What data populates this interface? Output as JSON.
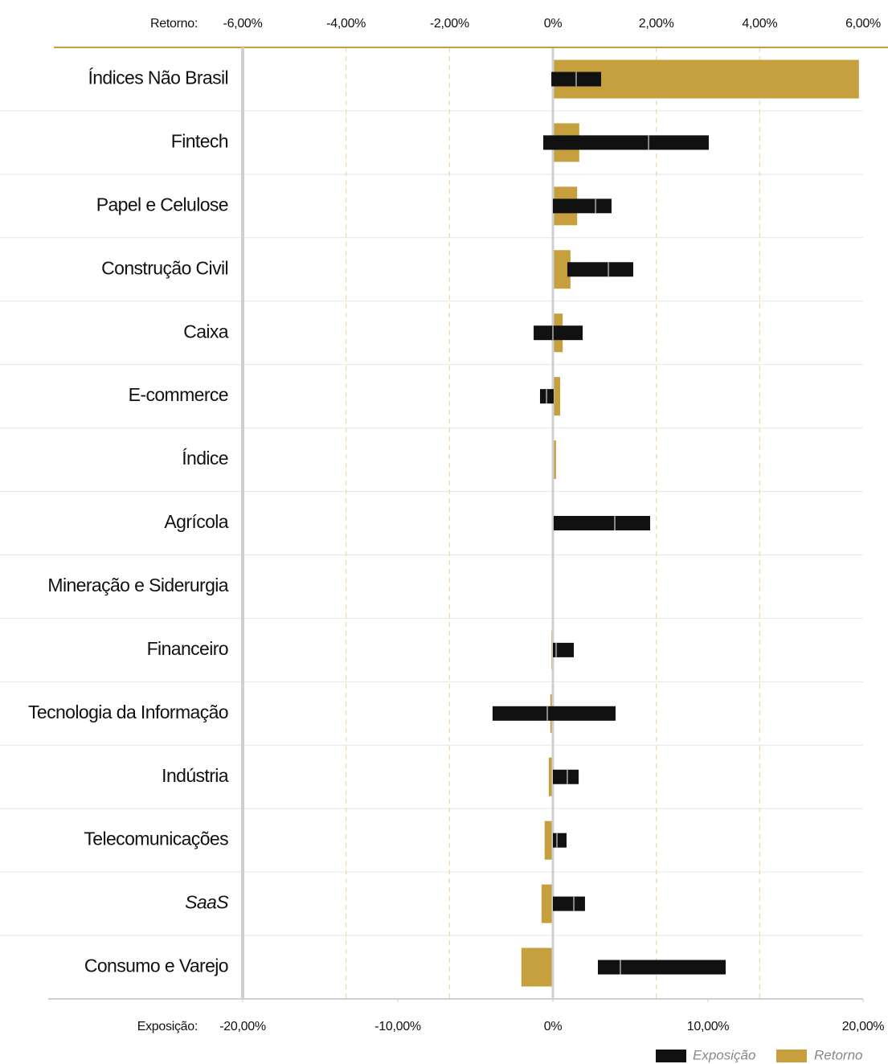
{
  "chart_data": {
    "type": "bar",
    "orientation": "horizontal",
    "categories": [
      "Índices Não Brasil",
      "Fintech",
      "Papel e Celulose",
      "Construção Civil",
      "Caixa",
      "E-commerce",
      "Índice",
      "Agrícola",
      "Mineração e Siderurgia",
      "Financeiro",
      "Tecnologia da Informação",
      "Indústria",
      "Telecomunicações",
      "SaaS",
      "Consumo e Varejo"
    ],
    "xlabel": "Retorno:",
    "x2label": "Exposição:",
    "xlim": [
      -6,
      6
    ],
    "xticks": [
      {
        "value": -6,
        "label": "-6,00%"
      },
      {
        "value": -4,
        "label": "-4,00%"
      },
      {
        "value": -2,
        "label": "-2,00%"
      },
      {
        "value": 0,
        "label": "0%"
      },
      {
        "value": 2,
        "label": "2,00%"
      },
      {
        "value": 4,
        "label": "4,00%"
      },
      {
        "value": 6,
        "label": "6,00%"
      }
    ],
    "x2lim": [
      -20,
      20
    ],
    "x2ticks": [
      {
        "value": -20,
        "label": "-20,00%"
      },
      {
        "value": -10,
        "label": "-10,00%"
      },
      {
        "value": 0,
        "label": "0%"
      },
      {
        "value": 10,
        "label": "10,00%"
      },
      {
        "value": 20,
        "label": "20,00%"
      }
    ],
    "grid": true,
    "legend": "bottom-right",
    "series": [
      {
        "name": "Exposição",
        "color": "#111111",
        "axis": "x2",
        "values": [
          1.5,
          6.17,
          2.75,
          3.58,
          0,
          -0.41,
          null,
          3.99,
          null,
          0.21,
          -0.36,
          0.93,
          0.26,
          1.35,
          4.35
        ],
        "low": [
          -0.1,
          -0.62,
          0,
          0.93,
          -1.24,
          -0.83,
          null,
          0.05,
          null,
          0,
          -3.89,
          0,
          0,
          0,
          2.9
        ],
        "high": [
          3.11,
          10.05,
          3.78,
          5.18,
          1.92,
          0.05,
          null,
          6.27,
          null,
          1.35,
          4.04,
          1.66,
          0.88,
          2.07,
          11.14
        ]
      },
      {
        "name": "Retorno",
        "color": "#c6a03e",
        "values": [
          5.92,
          0.51,
          0.47,
          0.34,
          0.19,
          0.14,
          0.06,
          0.02,
          0,
          -0.03,
          -0.05,
          -0.08,
          -0.16,
          -0.22,
          -0.61
        ]
      }
    ]
  }
}
